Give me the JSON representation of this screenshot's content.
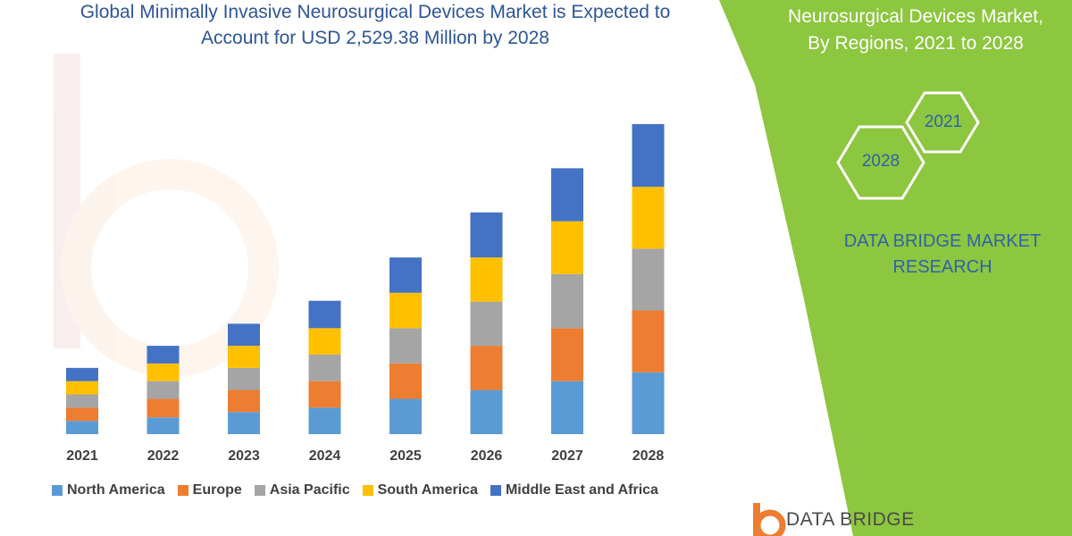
{
  "header": {
    "title_line1": "Global Minimally Invasive Neurosurgical Devices Market is Expected to",
    "title_line2": "Account for USD 2,529.38 Million by 2028"
  },
  "side_panel": {
    "title_line1": "Neurosurgical Devices Market,",
    "title_line2": "By Regions, 2021 to 2028",
    "hex_labels": [
      "2021",
      "2028"
    ],
    "brand_line1": "DATA BRIDGE MARKET",
    "brand_line2": "RESEARCH",
    "accent_color": "#8DC63F"
  },
  "logo": {
    "text": "DATA BRIDGE"
  },
  "chart_data": {
    "type": "bar",
    "stacked": true,
    "categories": [
      "2021",
      "2022",
      "2023",
      "2024",
      "2025",
      "2026",
      "2027",
      "2028"
    ],
    "series": [
      {
        "name": "North America",
        "color": "#5B9BD5",
        "values": [
          15,
          19,
          25,
          30,
          40,
          50,
          60,
          70
        ]
      },
      {
        "name": "Europe",
        "color": "#ED7D31",
        "values": [
          15,
          21,
          25,
          30,
          40,
          50,
          60,
          70
        ]
      },
      {
        "name": "Asia Pacific",
        "color": "#A5A5A5",
        "values": [
          15,
          20,
          25,
          30,
          40,
          50,
          61,
          70
        ]
      },
      {
        "name": "South America",
        "color": "#FFC000",
        "values": [
          15,
          20,
          25,
          30,
          40,
          50,
          60,
          70
        ]
      },
      {
        "name": "Middle East and Africa",
        "color": "#4472C4",
        "values": [
          15,
          20,
          25,
          31,
          40,
          51,
          60,
          71
        ]
      }
    ],
    "ylim": [
      0,
      360
    ],
    "grid": false,
    "legend_position": "bottom"
  }
}
